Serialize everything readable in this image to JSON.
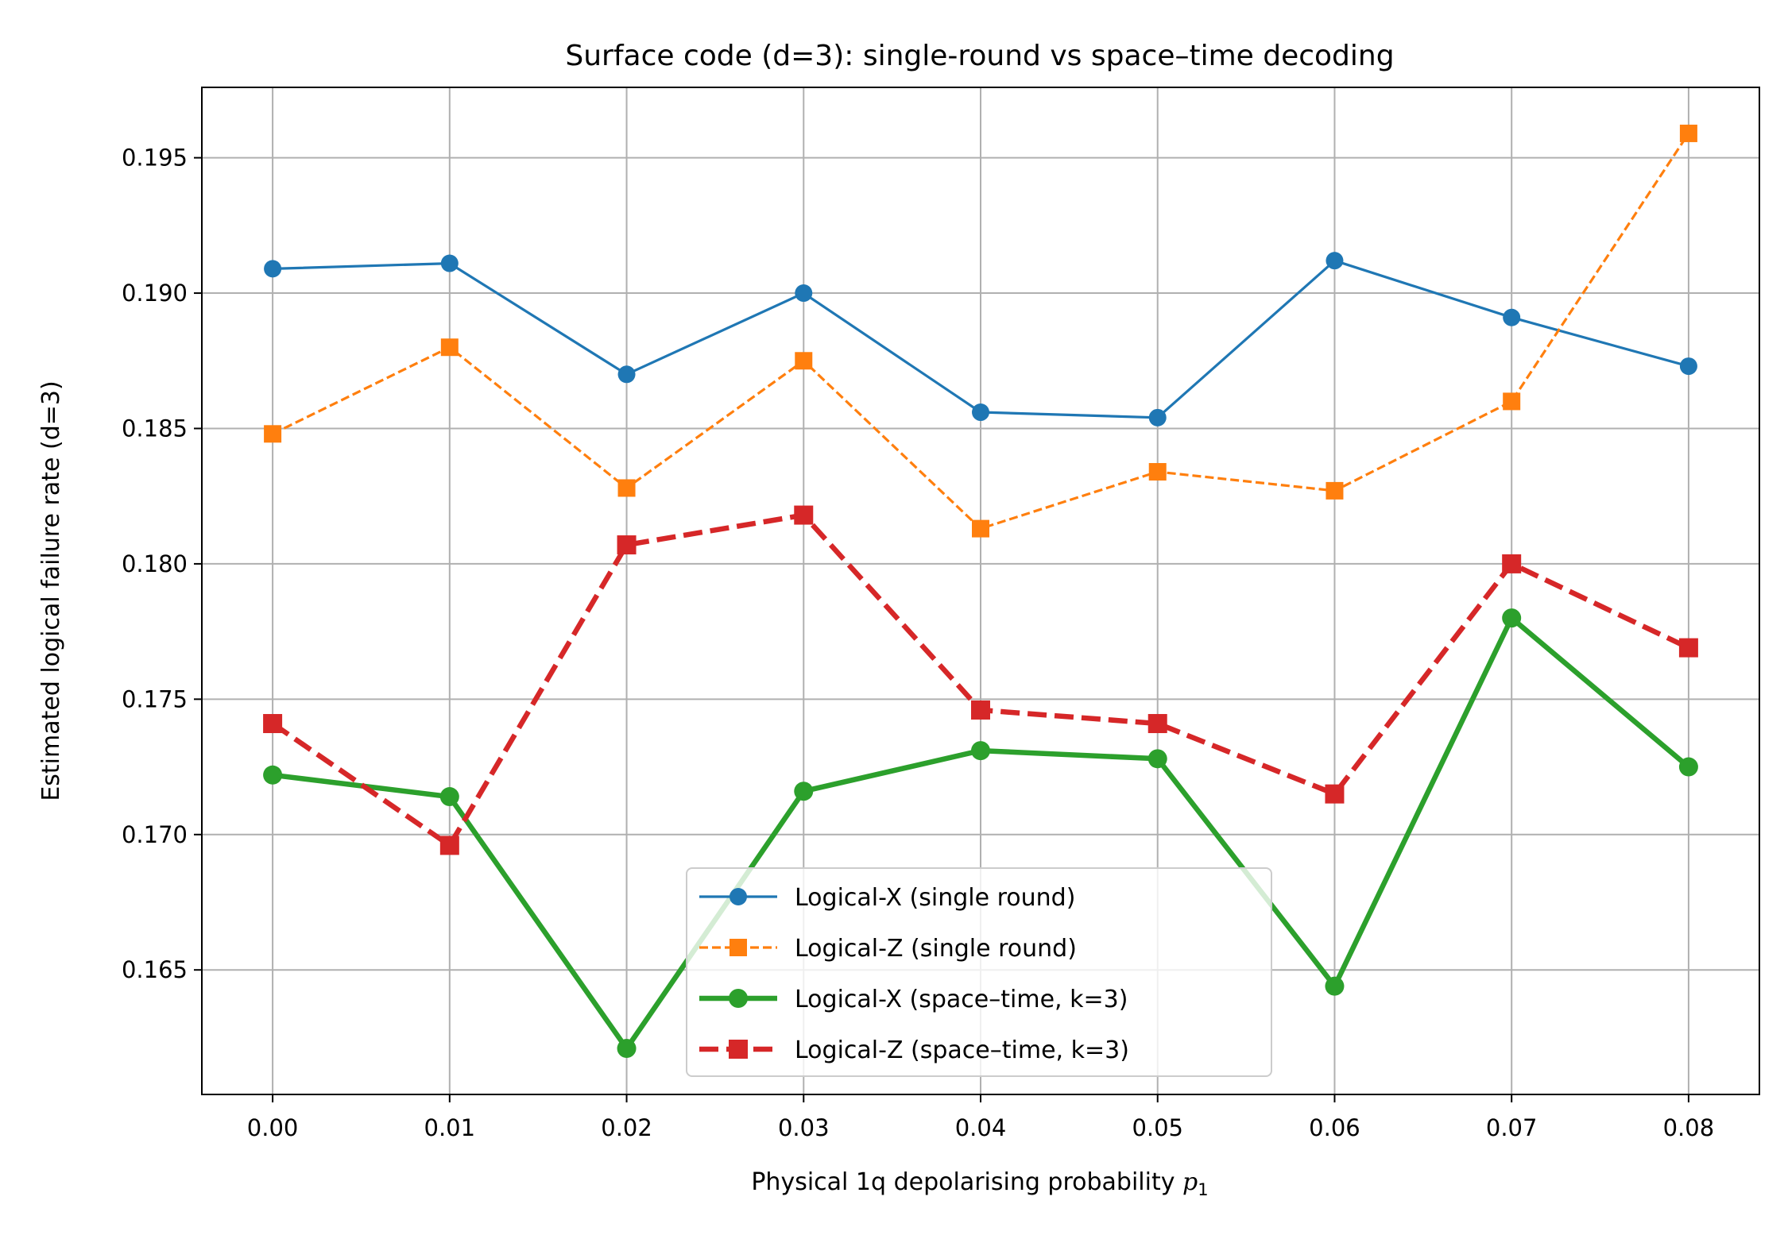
{
  "chart_data": {
    "type": "line",
    "title": "Surface code (d=3): single-round vs space–time decoding",
    "xlabel": "Physical 1q depolarising probability",
    "xlabel_math": "p",
    "xlabel_sub": "1",
    "ylabel": "Estimated logical failure rate (d=3)",
    "x": [
      0.0,
      0.01,
      0.02,
      0.03,
      0.04,
      0.05,
      0.06,
      0.07,
      0.08
    ],
    "xtick_labels": [
      "0.00",
      "0.01",
      "0.02",
      "0.03",
      "0.04",
      "0.05",
      "0.06",
      "0.07",
      "0.08"
    ],
    "ytick_values": [
      0.165,
      0.17,
      0.175,
      0.18,
      0.185,
      0.19,
      0.195
    ],
    "ytick_labels": [
      "0.165",
      "0.170",
      "0.175",
      "0.180",
      "0.185",
      "0.190",
      "0.195"
    ],
    "xlim": [
      -0.004,
      0.084
    ],
    "ylim": [
      0.1604,
      0.1976
    ],
    "grid": true,
    "legend_position": "lower-center",
    "series": [
      {
        "name": "Logical-X (single round)",
        "color": "#1f77b4",
        "marker": "circle",
        "line_style": "solid",
        "line_weight": "thin",
        "values": [
          0.1909,
          0.1911,
          0.187,
          0.19,
          0.1856,
          0.1854,
          0.1912,
          0.1891,
          0.1873
        ]
      },
      {
        "name": "Logical-Z (single round)",
        "color": "#ff7f0e",
        "marker": "square",
        "line_style": "dashed",
        "line_weight": "thin",
        "values": [
          0.1848,
          0.188,
          0.1828,
          0.1875,
          0.1813,
          0.1834,
          0.1827,
          0.186,
          0.1959
        ]
      },
      {
        "name": "Logical-X (space–time, k=3)",
        "color": "#2ca02c",
        "marker": "circle",
        "line_style": "solid",
        "line_weight": "thick",
        "values": [
          0.1722,
          0.1714,
          0.1621,
          0.1716,
          0.1731,
          0.1728,
          0.1644,
          0.178,
          0.1725
        ]
      },
      {
        "name": "Logical-Z (space–time, k=3)",
        "color": "#d62728",
        "marker": "square",
        "line_style": "dashed",
        "line_weight": "thick",
        "values": [
          0.1741,
          0.1696,
          0.1807,
          0.1818,
          0.1746,
          0.1741,
          0.1715,
          0.18,
          0.1769
        ]
      }
    ]
  }
}
